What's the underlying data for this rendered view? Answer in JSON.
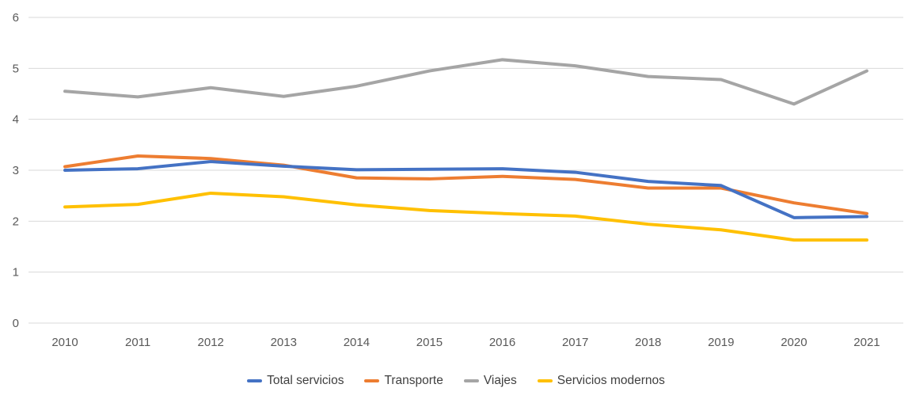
{
  "chart_data": {
    "type": "line",
    "title": "",
    "xlabel": "",
    "ylabel": "",
    "x": [
      2010,
      2011,
      2012,
      2013,
      2014,
      2015,
      2016,
      2017,
      2018,
      2019,
      2020,
      2021
    ],
    "series": [
      {
        "name": "Total servicios",
        "color": "#4472C4",
        "values": [
          3.0,
          3.03,
          3.17,
          3.08,
          3.01,
          3.02,
          3.03,
          2.96,
          2.78,
          2.7,
          2.07,
          2.09
        ]
      },
      {
        "name": "Transporte",
        "color": "#ED7D31",
        "values": [
          3.07,
          3.28,
          3.23,
          3.1,
          2.85,
          2.83,
          2.88,
          2.82,
          2.65,
          2.65,
          2.36,
          2.15
        ]
      },
      {
        "name": "Viajes",
        "color": "#A5A5A5",
        "values": [
          4.55,
          4.44,
          4.62,
          4.45,
          4.65,
          4.95,
          5.17,
          5.05,
          4.84,
          4.78,
          4.3,
          4.95
        ]
      },
      {
        "name": "Servicios modernos",
        "color": "#FFC000",
        "values": [
          2.28,
          2.33,
          2.55,
          2.48,
          2.32,
          2.21,
          2.15,
          2.1,
          1.94,
          1.83,
          1.63,
          1.63
        ]
      }
    ],
    "ylim": [
      0,
      6
    ],
    "yticks": [
      0,
      1,
      2,
      3,
      4,
      5,
      6
    ],
    "grid": "horizontal",
    "gridline_color": "#D9D9D9",
    "axis_label_color": "#595959",
    "legend_text_color": "#404040",
    "legend_position": "bottom",
    "line_width": 4,
    "draw_order": [
      2,
      3,
      1,
      0
    ]
  }
}
